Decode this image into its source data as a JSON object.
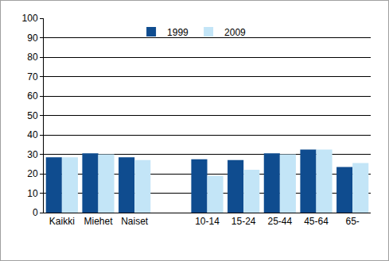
{
  "chart_data": {
    "type": "bar",
    "categories": [
      "Kaikki",
      "Miehet",
      "Naiset",
      null,
      "10-14",
      "15-24",
      "25-44",
      "45-64",
      "65-"
    ],
    "series": [
      {
        "name": "1999",
        "color": "#0f4c8f",
        "values": [
          28.5,
          30.5,
          28.5,
          null,
          27.5,
          27,
          30.5,
          32.5,
          23.5
        ]
      },
      {
        "name": "2009",
        "color": "#c3e5f7",
        "values": [
          28.5,
          30,
          27,
          null,
          19,
          22,
          30,
          32.5,
          25.5
        ]
      }
    ],
    "ylim": [
      0,
      100
    ],
    "yticks": [
      0,
      10,
      20,
      30,
      40,
      50,
      60,
      70,
      80,
      90,
      100
    ],
    "grid": true,
    "legend": "top"
  }
}
